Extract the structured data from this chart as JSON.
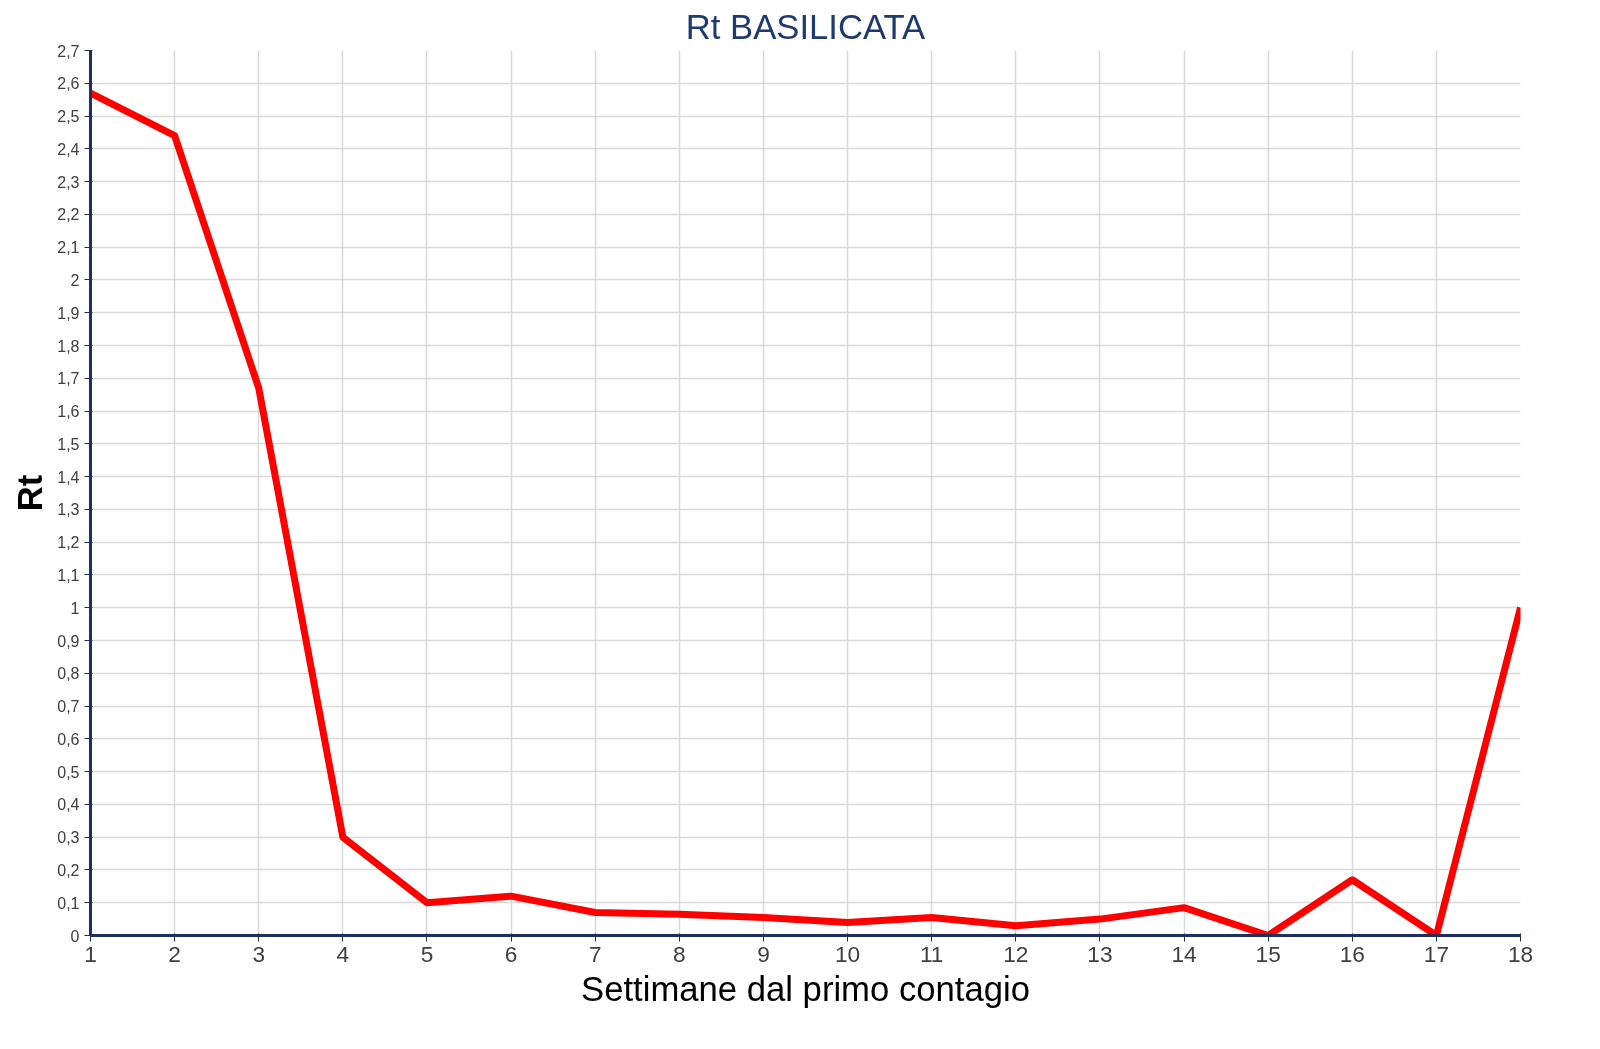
{
  "chart_data": {
    "type": "line",
    "title": "Rt BASILICATA",
    "xlabel": "Settimane dal primo contagio",
    "ylabel": "Rt",
    "x": [
      1,
      2,
      3,
      4,
      5,
      6,
      7,
      8,
      9,
      10,
      11,
      12,
      13,
      14,
      15,
      16,
      17,
      18
    ],
    "series": [
      {
        "color": "#ff0000",
        "values": [
          2.57,
          2.44,
          1.67,
          0.3,
          0.1,
          0.12,
          0.07,
          0.065,
          0.055,
          0.04,
          0.055,
          0.03,
          0.05,
          0.085,
          0.0,
          0.17,
          0.0,
          1.0
        ]
      }
    ],
    "xlim": [
      1,
      18
    ],
    "xticks": [
      1,
      2,
      3,
      4,
      5,
      6,
      7,
      8,
      9,
      10,
      11,
      12,
      13,
      14,
      15,
      16,
      17,
      18
    ],
    "ylim": [
      0,
      2.7
    ],
    "yticks": [
      0,
      {
        "value": 0.1,
        "label": "0,1"
      },
      {
        "value": 0.2,
        "label": "0,2"
      },
      {
        "value": 0.3,
        "label": "0,3"
      },
      {
        "value": 0.4,
        "label": "0,4"
      },
      {
        "value": 0.5,
        "label": "0,5"
      },
      {
        "value": 0.6,
        "label": "0,6"
      },
      {
        "value": 0.7,
        "label": "0,7"
      },
      {
        "value": 0.8,
        "label": "0,8"
      },
      {
        "value": 0.9,
        "label": "0,9"
      },
      1,
      {
        "value": 1.1,
        "label": "1,1"
      },
      {
        "value": 1.2,
        "label": "1,2"
      },
      {
        "value": 1.3,
        "label": "1,3"
      },
      {
        "value": 1.4,
        "label": "1,4"
      },
      {
        "value": 1.5,
        "label": "1,5"
      },
      {
        "value": 1.6,
        "label": "1,6"
      },
      {
        "value": 1.7,
        "label": "1,7"
      },
      {
        "value": 1.8,
        "label": "1,8"
      },
      {
        "value": 1.9,
        "label": "1,9"
      },
      2,
      {
        "value": 2.1,
        "label": "2,1"
      },
      {
        "value": 2.2,
        "label": "2,2"
      },
      {
        "value": 2.3,
        "label": "2,3"
      },
      {
        "value": 2.4,
        "label": "2,4"
      },
      {
        "value": 2.5,
        "label": "2,5"
      },
      {
        "value": 2.6,
        "label": "2,6"
      },
      {
        "value": 2.7,
        "label": "2,7"
      }
    ],
    "grid": true,
    "marker": "none",
    "line_style": "solid"
  }
}
